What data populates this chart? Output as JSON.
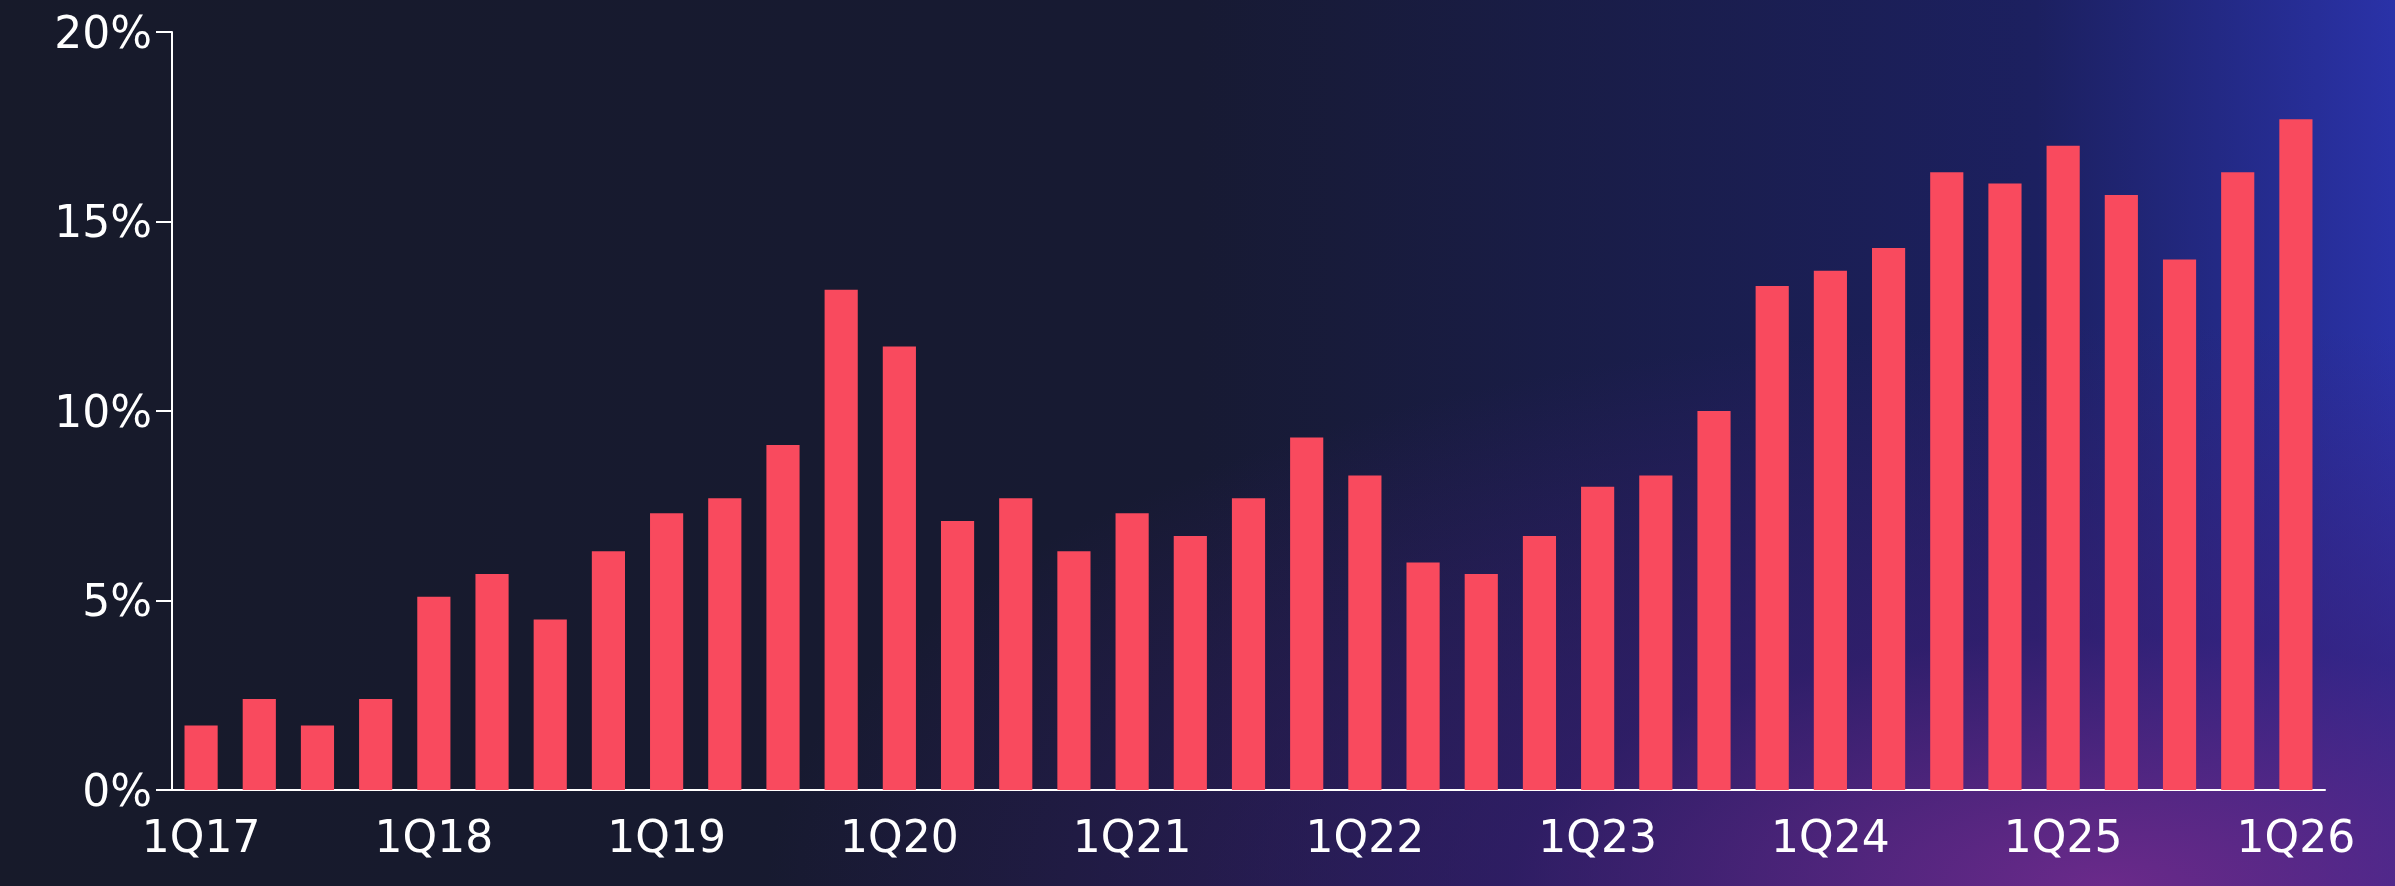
{
  "chart_data": {
    "type": "bar",
    "categories": [
      "1Q17",
      null,
      null,
      null,
      "1Q18",
      null,
      null,
      null,
      "1Q19",
      null,
      null,
      null,
      "1Q20",
      null,
      null,
      null,
      "1Q21",
      null,
      null,
      null,
      "1Q22",
      null,
      null,
      null,
      "1Q23",
      null,
      null,
      null,
      "1Q24",
      null,
      null,
      null,
      "1Q25",
      null,
      null,
      null,
      "1Q26"
    ],
    "values": [
      1.7,
      2.4,
      1.7,
      2.4,
      5.1,
      5.7,
      4.5,
      6.3,
      7.3,
      7.7,
      9.1,
      13.2,
      11.7,
      7.1,
      7.7,
      6.3,
      7.3,
      6.7,
      7.7,
      9.3,
      8.3,
      6.0,
      5.7,
      6.7,
      8.0,
      8.3,
      10.0,
      13.3,
      13.7,
      14.3,
      16.3,
      16.0,
      17.0,
      15.7,
      14.0,
      16.3,
      17.7
    ],
    "color": "#f94a5e",
    "ylim": [
      0,
      20
    ],
    "yticks": [
      {
        "value": 0,
        "label": "0%"
      },
      {
        "value": 5,
        "label": "5%"
      },
      {
        "value": 10,
        "label": "10%"
      },
      {
        "value": 15,
        "label": "15%"
      },
      {
        "value": 20,
        "label": "20%"
      }
    ],
    "grid": false
  }
}
